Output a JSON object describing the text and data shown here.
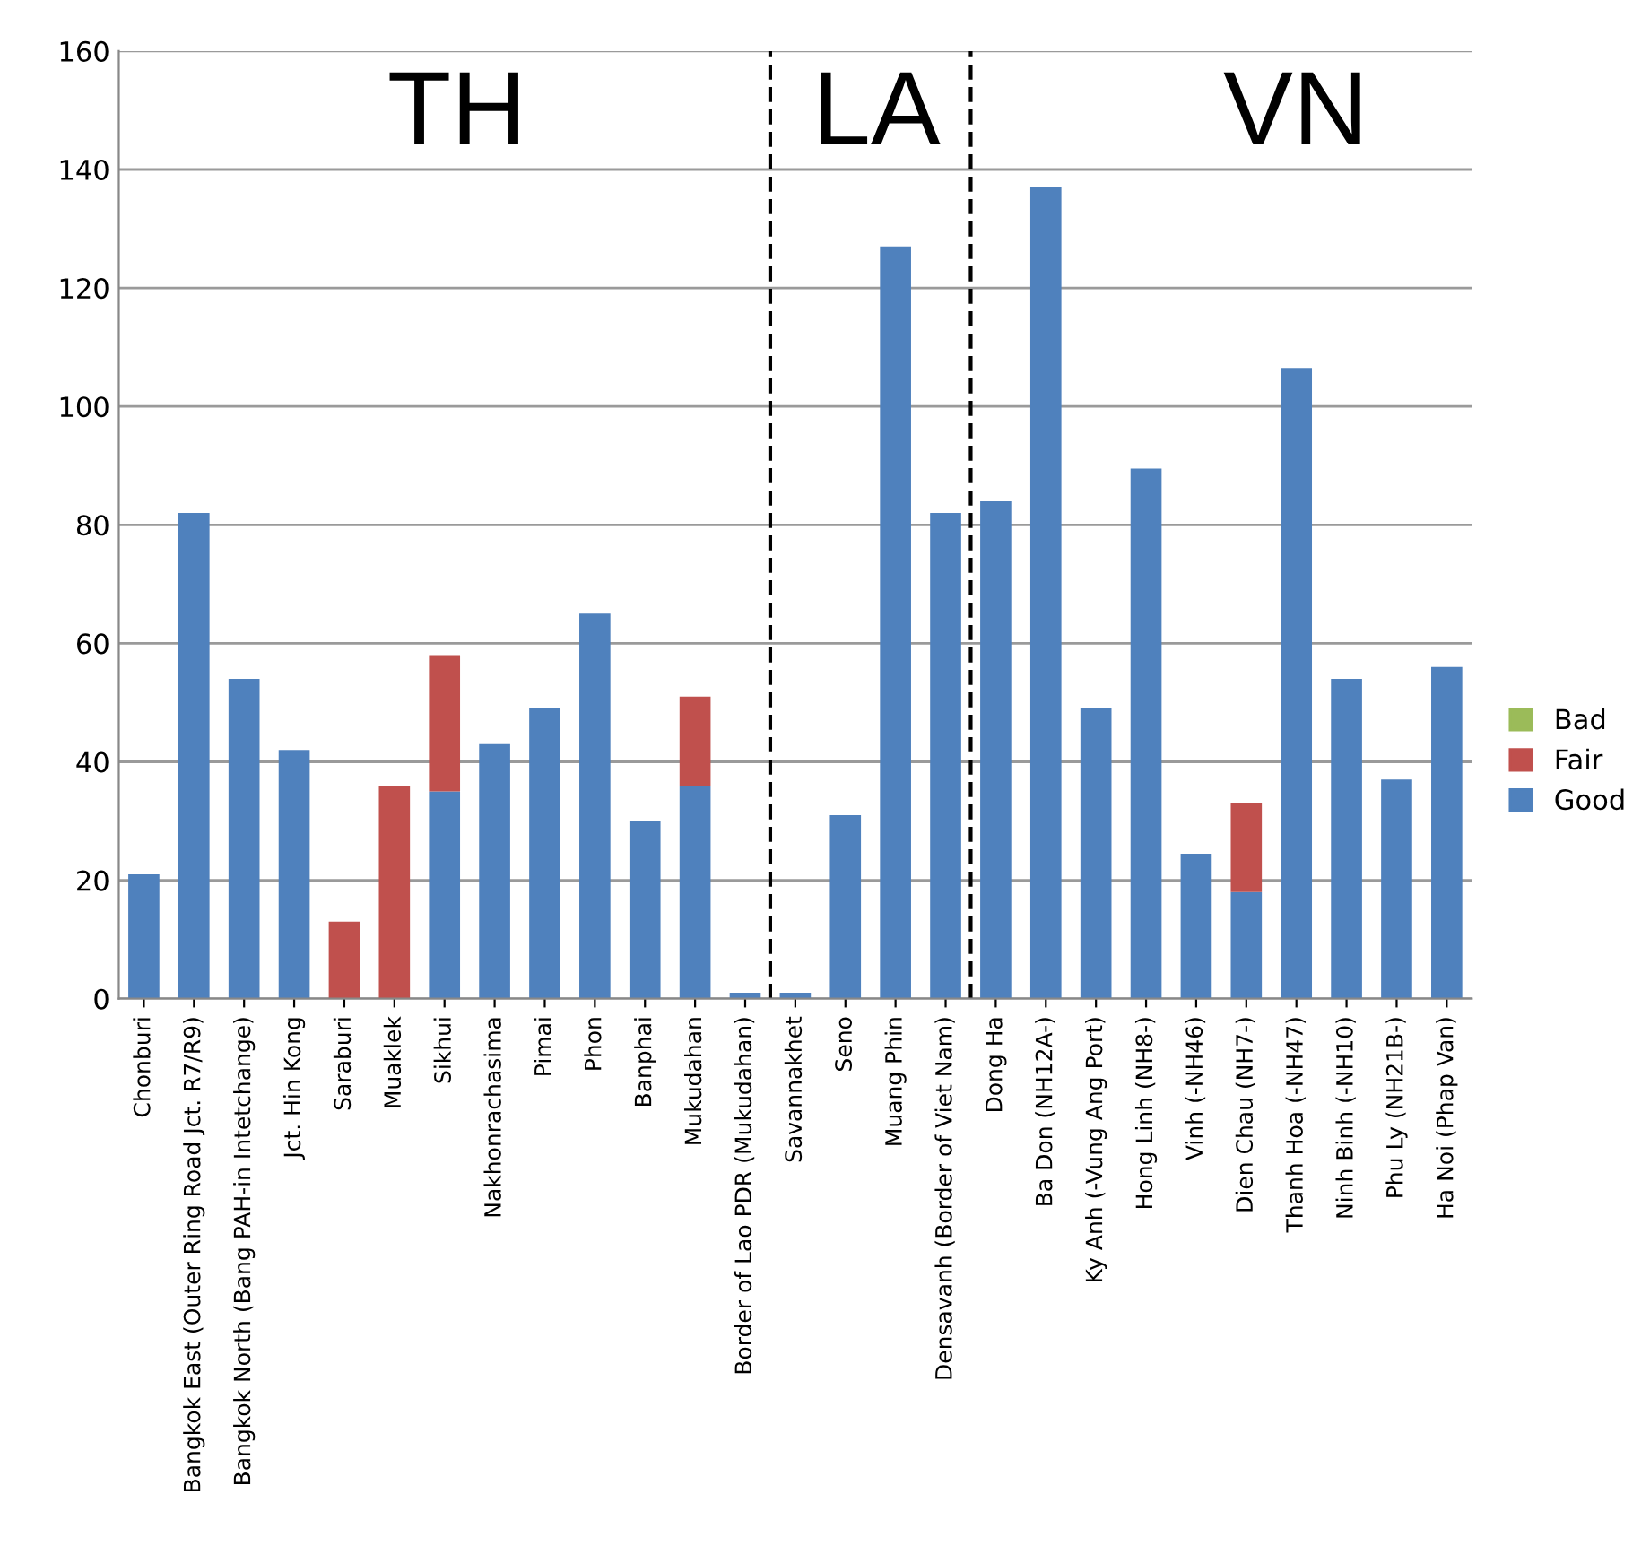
{
  "chart_data": {
    "type": "bar",
    "stacked": true,
    "categories": [
      "Chonburi",
      "Bangkok East (Outer Ring Road Jct. R7/R9)",
      "Bangkok North (Bang PAH-in Intetchange)",
      "Jct. Hin Kong",
      "Saraburi",
      "Muaklek",
      "Sikhui",
      "Nakhonrachasima",
      "Pimai",
      "Phon",
      "Banphai",
      "Mukudahan",
      "Border of Lao PDR (Mukudahan)",
      "Savannakhet",
      "Seno",
      "Muang Phin",
      "Densavanh (Border of Viet Nam)",
      "Dong Ha",
      "Ba Don (NH12A-)",
      "Ky Anh (-Vung Ang Port)",
      "Hong Linh (NH8-)",
      "Vinh (-NH46)",
      "Dien Chau (NH7-)",
      "Thanh Hoa (-NH47)",
      "Ninh Binh (-NH10)",
      "Phu Ly (NH21B-)",
      "Ha Noi (Phap Van)"
    ],
    "series": [
      {
        "name": "Good",
        "color": "#4f81bd",
        "values": [
          21,
          82,
          54,
          42,
          0,
          0,
          35,
          43,
          49,
          65,
          30,
          36,
          1,
          1,
          31,
          127,
          82,
          84,
          137,
          49,
          89.5,
          24.5,
          18,
          106.5,
          54,
          37,
          56
        ]
      },
      {
        "name": "Fair",
        "color": "#c0504d",
        "values": [
          0,
          0,
          0,
          0,
          13,
          36,
          23,
          0,
          0,
          0,
          0,
          15,
          0,
          0,
          0,
          0,
          0,
          0,
          0,
          0,
          0,
          0,
          15,
          0,
          0,
          0,
          0
        ]
      },
      {
        "name": "Bad",
        "color": "#9bbb59",
        "values": [
          0,
          0,
          0,
          0,
          0,
          0,
          0,
          0,
          0,
          0,
          0,
          0,
          0,
          0,
          0,
          0,
          0,
          0,
          0,
          0,
          0,
          0,
          0,
          0,
          0,
          0,
          0
        ]
      }
    ],
    "ylim": [
      0,
      160
    ],
    "yticks": [
      0,
      20,
      40,
      60,
      80,
      100,
      120,
      140,
      160
    ],
    "grid": "y",
    "legend": "right",
    "annotations": [
      "TH",
      "LA",
      "VN"
    ]
  }
}
